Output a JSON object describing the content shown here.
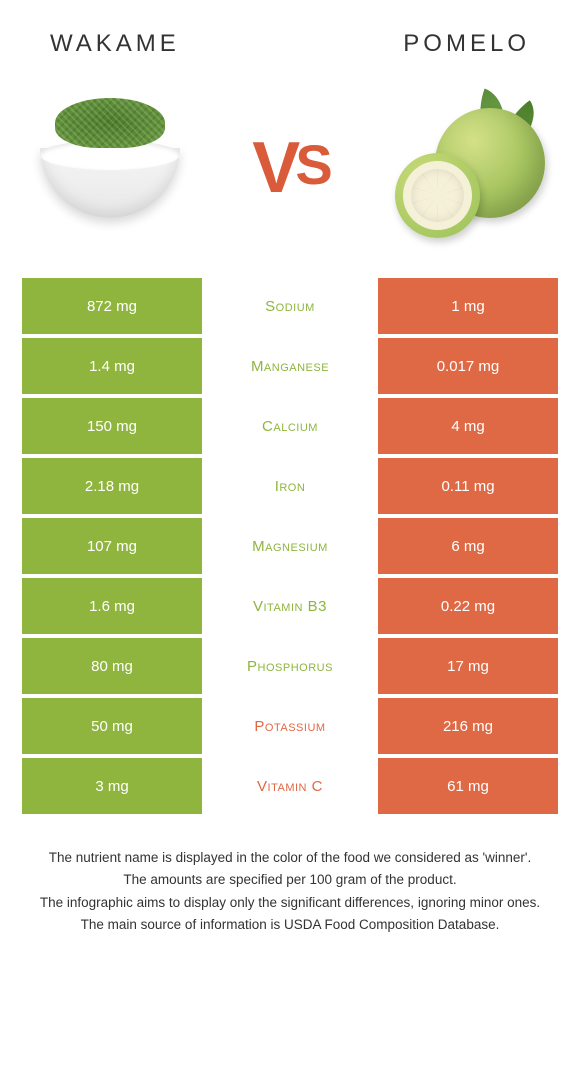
{
  "header": {
    "left_title": "Wakame",
    "right_title": "Pomelo",
    "vs_text_v": "V",
    "vs_text_s": "S"
  },
  "colors": {
    "wakame_green": "#8fb53f",
    "pomelo_orange": "#e06945",
    "bg": "#ffffff",
    "text_white": "#ffffff"
  },
  "table": {
    "left_bg": "#8fb53f",
    "right_bg": "#e06945",
    "rows": [
      {
        "nutrient": "Sodium",
        "left": "872 mg",
        "right": "1 mg",
        "winner": "left"
      },
      {
        "nutrient": "Manganese",
        "left": "1.4 mg",
        "right": "0.017 mg",
        "winner": "left"
      },
      {
        "nutrient": "Calcium",
        "left": "150 mg",
        "right": "4 mg",
        "winner": "left"
      },
      {
        "nutrient": "Iron",
        "left": "2.18 mg",
        "right": "0.11 mg",
        "winner": "left"
      },
      {
        "nutrient": "Magnesium",
        "left": "107 mg",
        "right": "6 mg",
        "winner": "left"
      },
      {
        "nutrient": "Vitamin B3",
        "left": "1.6 mg",
        "right": "0.22 mg",
        "winner": "left"
      },
      {
        "nutrient": "Phosphorus",
        "left": "80 mg",
        "right": "17 mg",
        "winner": "left"
      },
      {
        "nutrient": "Potassium",
        "left": "50 mg",
        "right": "216 mg",
        "winner": "right"
      },
      {
        "nutrient": "Vitamin C",
        "left": "3 mg",
        "right": "61 mg",
        "winner": "right"
      }
    ]
  },
  "footnotes": {
    "line1": "The nutrient name is displayed in the color of the food we considered as 'winner'.",
    "line2": "The amounts are specified per 100 gram of the product.",
    "line3": "The infographic aims to display only the significant differences, ignoring minor ones.",
    "line4": "The main source of information is USDA Food Composition Database."
  }
}
